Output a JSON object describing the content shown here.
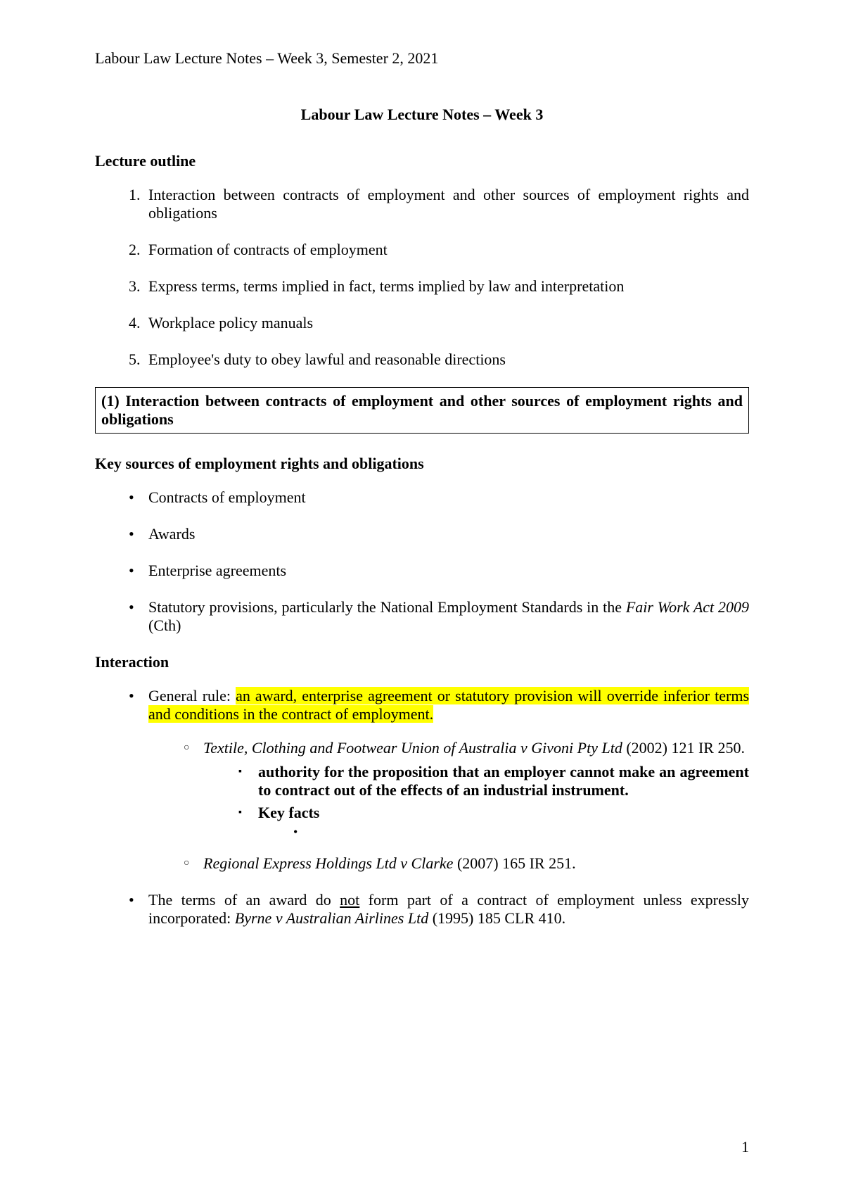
{
  "header": "Labour Law Lecture Notes – Week 3, Semester 2, 2021",
  "title": "Labour Law Lecture Notes – Week 3",
  "lecture_outline_label": "Lecture outline",
  "outline": [
    "Interaction between contracts of employment and other sources of employment rights and obligations",
    "Formation of contracts of employment",
    "Express terms, terms implied in fact, terms implied by law and interpretation",
    "Workplace policy manuals",
    "Employee's duty to obey lawful and reasonable directions"
  ],
  "section1_heading": "(1) Interaction between contracts of employment and other sources of employment rights and obligations",
  "key_sources_label": "Key sources of employment rights and obligations",
  "key_sources": {
    "item1": "Contracts of employment",
    "item2": "Awards",
    "item3": "Enterprise agreements",
    "item4_prefix": "Statutory provisions, particularly the National Employment Standards in the ",
    "item4_italic": "Fair Work Act 2009",
    "item4_suffix": " (Cth)"
  },
  "interaction_label": "Interaction",
  "interaction": {
    "rule_prefix": "General rule: ",
    "rule_highlight": "an award, enterprise agreement or statutory provision will override inferior terms and conditions in the contract of employment.",
    "case1_name": "Textile, Clothing and Footwear Union of Australia v Givoni Pty Ltd",
    "case1_cite": " (2002) 121 IR 250.",
    "case1_authority": "authority for the proposition that an employer cannot make an agreement to contract out of the effects of an industrial instrument.",
    "case1_keyfacts": "Key facts",
    "case2_name": "Regional Express Holdings Ltd v Clarke",
    "case2_cite": " (2007) 165 IR 251.",
    "award_terms_prefix": "The terms of an award do ",
    "award_terms_not": "not",
    "award_terms_mid": " form part of a contract of employment unless expressly incorporated: ",
    "award_terms_case": "Byrne v Australian Airlines Ltd",
    "award_terms_cite": " (1995) 185 CLR 410."
  },
  "page_number": "1",
  "colors": {
    "highlight": "#ffff00",
    "text": "#000000",
    "background": "#ffffff"
  }
}
